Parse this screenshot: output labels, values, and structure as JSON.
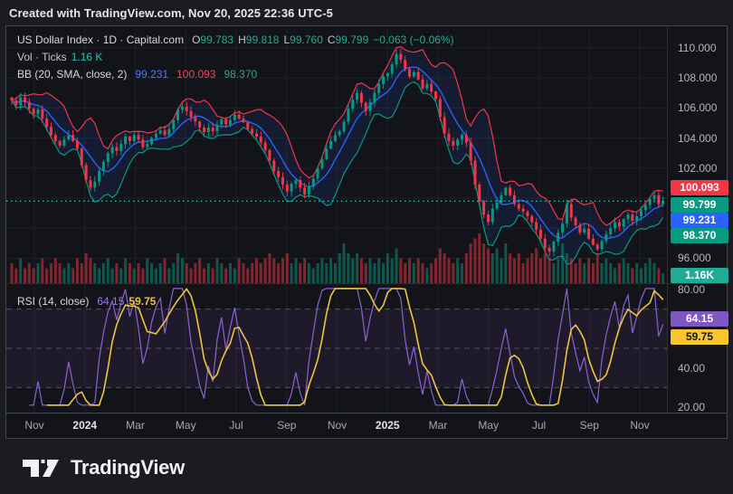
{
  "header": {
    "created_with": "Created with TradingView.com, Nov 20, 2025 22:36 UTC-5"
  },
  "legend": {
    "symbol": "US Dollar Index · 1D · Capital.com",
    "o_label": "O",
    "o_value": "99.783",
    "h_label": "H",
    "h_value": "99.818",
    "l_label": "L",
    "l_value": "99.760",
    "c_label": "C",
    "c_value": "99.799",
    "change": "−0.063 (−0.06%)",
    "vol_label": "Vol · Ticks",
    "vol_value": "1.16 K",
    "bb_label": "BB (20, SMA, close, 2)",
    "bb_basis": "99.231",
    "bb_upper": "100.093",
    "bb_lower": "98.370",
    "rsi_label": "RSI (14, close)",
    "rsi_value": "64.15",
    "rsi_ma_value": "59.75"
  },
  "footer": {
    "brand": "TradingView"
  },
  "colors": {
    "up": "#089981",
    "down": "#f23645",
    "bb_upper": "#f23645",
    "bb_basis": "#2962ff",
    "bb_lower": "#089981",
    "band_fill": "rgba(41,98,255,0.10)",
    "close_line": "#2bbfa7",
    "rsi": "#8a63d2",
    "rsi_ma": "#edc53f",
    "rsi_zone_fill": "rgba(126,87,194,0.10)",
    "grid": "#1d2026",
    "axis_border": "#42464f",
    "pane_split": "#2a2d34",
    "badge_red": "#f23645",
    "badge_teal": "#089981",
    "badge_blue": "#2962ff",
    "badge_purple": "#7e57c2",
    "badge_yellow": "#f7c52d",
    "badge_vol": "#22ab94"
  },
  "chart_data": {
    "type": "candlestick",
    "title": "US Dollar Index",
    "interval": "1D",
    "exchange": "Capital.com",
    "ohlc_last": {
      "open": 99.783,
      "high": 99.818,
      "low": 99.76,
      "close": 99.799,
      "change": -0.063,
      "change_pct": "−0.06%"
    },
    "volume_last": "1.16K",
    "indicators": {
      "bb": {
        "length": 20,
        "type": "SMA",
        "source": "close",
        "stdev": 2,
        "basis": 99.231,
        "upper": 100.093,
        "lower": 98.37
      },
      "rsi": {
        "length": 14,
        "source": "close",
        "value": 64.15,
        "ma": 59.75,
        "upper_band": 70,
        "middle_band": 50,
        "lower_band": 30
      }
    },
    "price_axis_ticks": [
      110,
      108,
      106,
      104,
      102,
      96
    ],
    "rsi_axis_ticks": [
      80,
      40,
      20
    ],
    "price_labels": [
      {
        "text": "100.093",
        "bg": "badge_red"
      },
      {
        "text": "99.799",
        "bg": "badge_teal"
      },
      {
        "text": "99.231",
        "bg": "badge_blue"
      },
      {
        "text": "98.370",
        "bg": "badge_teal"
      }
    ],
    "rsi_labels": [
      {
        "text": "64.15",
        "bg": "badge_purple"
      },
      {
        "text": "59.75",
        "bg": "badge_yellow",
        "dark_text": true
      }
    ],
    "volume_label": {
      "text": "1.16K",
      "bg": "badge_vol"
    },
    "close_line_value": 99.799,
    "time_axis": [
      {
        "label": "Nov"
      },
      {
        "label": "2024",
        "year": true
      },
      {
        "label": "Mar"
      },
      {
        "label": "May"
      },
      {
        "label": "Jul"
      },
      {
        "label": "Sep"
      },
      {
        "label": "Nov"
      },
      {
        "label": "2025",
        "year": true
      },
      {
        "label": "Mar"
      },
      {
        "label": "May"
      },
      {
        "label": "Jul"
      },
      {
        "label": "Sep"
      },
      {
        "label": "Nov"
      }
    ],
    "x_range": {
      "start": "Oct 2023",
      "end": "Nov 20 2025"
    },
    "y_range": [
      94.5,
      111.5
    ],
    "rsi_range": [
      20,
      80
    ],
    "closes": [
      106.5,
      106.2,
      106.7,
      106.4,
      105.95,
      105.6,
      105.9,
      105.3,
      104.75,
      104.2,
      103.8,
      103.5,
      103.9,
      104.2,
      103.8,
      103.3,
      102.2,
      101.2,
      100.7,
      101.1,
      101.8,
      102.4,
      103.0,
      103.4,
      103.15,
      103.6,
      104.1,
      103.8,
      104.2,
      103.9,
      103.4,
      103.6,
      104.0,
      104.3,
      104.5,
      104.2,
      104.6,
      105.2,
      105.9,
      106.1,
      105.8,
      105.4,
      105.1,
      104.7,
      104.4,
      104.7,
      104.45,
      104.9,
      105.25,
      104.9,
      105.2,
      105.55,
      105.3,
      105.05,
      104.6,
      104.3,
      104.1,
      103.7,
      103.2,
      102.5,
      101.8,
      101.4,
      100.9,
      100.45,
      100.95,
      101.2,
      100.7,
      100.25,
      100.8,
      101.3,
      102.0,
      102.6,
      103.3,
      103.8,
      104.2,
      104.45,
      105.1,
      105.95,
      106.55,
      107.0,
      106.35,
      105.8,
      106.4,
      107.0,
      107.6,
      108.1,
      108.3,
      108.9,
      109.6,
      109.2,
      108.6,
      108.1,
      108.4,
      107.9,
      107.3,
      107.6,
      107.1,
      106.6,
      105.4,
      104.3,
      103.8,
      103.5,
      103.9,
      104.2,
      103.7,
      102.5,
      100.9,
      99.8,
      98.9,
      98.4,
      99.3,
      99.7,
      100.2,
      100.7,
      100.2,
      99.6,
      99.3,
      99.1,
      98.8,
      98.4,
      97.9,
      97.3,
      96.7,
      96.45,
      97.1,
      97.7,
      98.3,
      99.6,
      98.7,
      98.2,
      97.7,
      97.95,
      97.3,
      96.9,
      96.6,
      97.15,
      97.6,
      98.0,
      98.4,
      98.1,
      98.6,
      98.9,
      98.5,
      98.8,
      99.2,
      99.55,
      99.95,
      100.2,
      99.6,
      99.8
    ],
    "volumes": [
      4,
      3,
      5,
      3,
      4,
      3,
      4,
      5,
      3,
      4,
      5,
      4,
      3,
      4,
      3,
      5,
      4,
      6,
      5,
      4,
      3,
      4,
      5,
      3,
      4,
      3,
      5,
      4,
      3,
      4,
      3,
      5,
      4,
      3,
      4,
      5,
      3,
      4,
      6,
      5,
      4,
      3,
      4,
      5,
      3,
      4,
      3,
      5,
      4,
      3,
      4,
      3,
      5,
      4,
      3,
      4,
      5,
      4,
      5,
      6,
      5,
      4,
      5,
      6,
      4,
      5,
      4,
      5,
      4,
      3,
      4,
      5,
      4,
      5,
      4,
      6,
      8,
      6,
      5,
      6,
      5,
      4,
      5,
      4,
      5,
      4,
      6,
      5,
      7,
      5,
      4,
      5,
      4,
      5,
      4,
      3,
      4,
      5,
      7,
      6,
      5,
      4,
      5,
      4,
      6,
      8,
      9,
      10,
      8,
      7,
      6,
      7,
      5,
      8,
      6,
      5,
      6,
      4,
      5,
      6,
      7,
      5,
      6,
      5,
      4,
      5,
      8,
      6,
      5,
      4,
      5,
      4,
      5,
      4,
      6,
      4,
      5,
      4,
      3,
      4,
      5,
      4,
      3,
      4,
      3,
      4,
      5,
      4,
      3,
      2
    ]
  }
}
